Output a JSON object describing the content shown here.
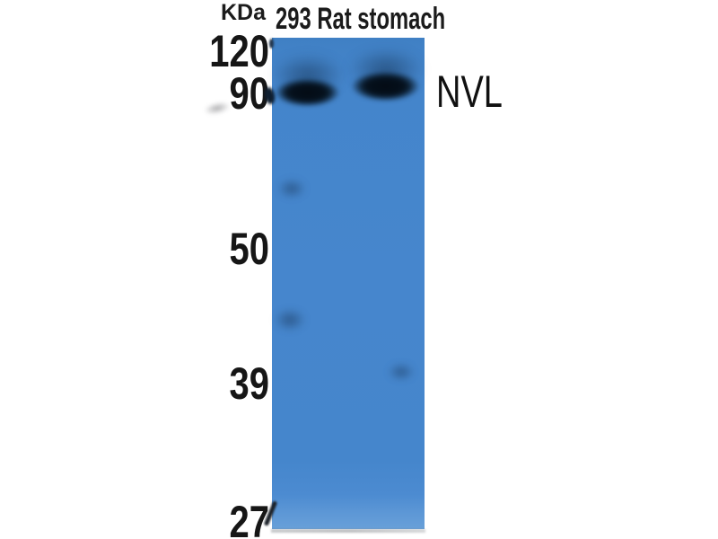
{
  "figure": {
    "type": "western-blot",
    "unit_label": "KDa",
    "lane_label": "293 Rat stomach",
    "lanes": [
      "293",
      "Rat stomach"
    ],
    "band_label": "NVL",
    "markers": [
      "120",
      "90",
      "50",
      "39",
      "27"
    ],
    "bands": [
      {
        "lane": "293",
        "approx_kda": 90,
        "label": "NVL",
        "intensity": "strong"
      },
      {
        "lane": "Rat stomach",
        "approx_kda": 90,
        "label": "NVL",
        "intensity": "strong"
      }
    ],
    "colors": {
      "membrane_blue": "#4686cd",
      "band_dark": "#05101c",
      "background": "#ffffff",
      "text": "#1b1b1b"
    }
  }
}
